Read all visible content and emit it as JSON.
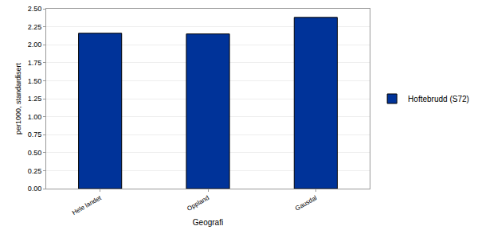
{
  "chart_data": {
    "type": "bar",
    "x_label": "Geografi",
    "y_label": "per1000, standardisert",
    "categories": [
      "Hele landet",
      "Oppland",
      "Gausdal"
    ],
    "series": [
      {
        "name": "Hoftebrudd (S72)",
        "color": "#003399",
        "values": [
          2.16,
          2.15,
          2.38
        ]
      }
    ],
    "ylim": [
      0,
      2.5
    ],
    "yticks": [
      {
        "value": 0,
        "label": "0.00"
      },
      {
        "value": 0.25,
        "label": "0.25"
      },
      {
        "value": 0.5,
        "label": "0.50"
      },
      {
        "value": 0.75,
        "label": "0.75"
      },
      {
        "value": 1,
        "label": "1.00"
      },
      {
        "value": 1.25,
        "label": "1.25"
      },
      {
        "value": 1.5,
        "label": "1.50"
      },
      {
        "value": 1.75,
        "label": "1.75"
      },
      {
        "value": 2,
        "label": "2.00"
      },
      {
        "value": 2.25,
        "label": "2.25"
      },
      {
        "value": 2.5,
        "label": "2.50"
      }
    ],
    "grid": true,
    "legend": "right"
  }
}
